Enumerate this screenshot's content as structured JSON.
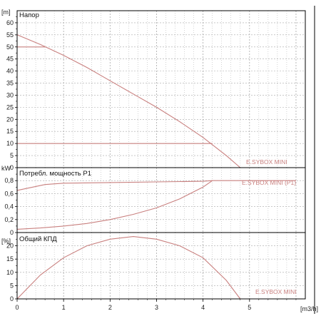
{
  "chart_data": [
    {
      "type": "line",
      "title": "Напор",
      "ylabel": "[m]",
      "xlabel": "",
      "xlim": [
        0,
        6.2
      ],
      "ylim": [
        0,
        65
      ],
      "x_ticks": [
        0,
        1,
        2,
        3,
        4,
        5
      ],
      "y_ticks": [
        0,
        5,
        10,
        15,
        20,
        25,
        30,
        35,
        40,
        45,
        50,
        55,
        60
      ],
      "grid": true,
      "series": [
        {
          "name": "E.SYBOX MINI",
          "x": [
            0,
            0.5,
            1,
            1.5,
            2,
            2.5,
            3,
            3.5,
            4,
            4.5,
            4.8
          ],
          "y": [
            55,
            51,
            46.5,
            41.5,
            36,
            30.5,
            25,
            19,
            12.5,
            5,
            0
          ]
        },
        {
          "name": "",
          "x": [
            0,
            0.6
          ],
          "y": [
            50,
            50
          ]
        },
        {
          "name": "",
          "x": [
            0,
            4.2
          ],
          "y": [
            10,
            10
          ]
        }
      ]
    },
    {
      "type": "line",
      "title": "Потребл. мощность P1",
      "ylabel": "kW",
      "xlabel": "",
      "xlim": [
        0,
        6.2
      ],
      "ylim": [
        0,
        1.0
      ],
      "x_ticks": [
        0,
        1,
        2,
        3,
        4,
        5
      ],
      "y_ticks": [
        "0",
        "0,2",
        "0,4",
        "0,6",
        "0,8"
      ],
      "grid": true,
      "series": [
        {
          "name": "E.SYBOX MINI (P1)",
          "x": [
            0,
            0.6,
            1,
            2,
            3,
            4,
            4.2,
            5,
            6
          ],
          "y": [
            0.65,
            0.74,
            0.76,
            0.77,
            0.78,
            0.79,
            0.8,
            0.8,
            0.8
          ]
        },
        {
          "name": "",
          "x": [
            0,
            0.5,
            1,
            1.5,
            2,
            2.5,
            3,
            3.5,
            4,
            4.2
          ],
          "y": [
            0.05,
            0.07,
            0.1,
            0.14,
            0.2,
            0.28,
            0.38,
            0.52,
            0.7,
            0.8
          ]
        }
      ]
    },
    {
      "type": "line",
      "title": "Общий КПД",
      "ylabel": "[%]",
      "xlabel": "[m3/h]",
      "xlim": [
        0,
        6.2
      ],
      "ylim": [
        0,
        25
      ],
      "x_ticks": [
        0,
        1,
        2,
        3,
        4,
        5
      ],
      "y_ticks": [
        0,
        5,
        10,
        15,
        20
      ],
      "grid": true,
      "series": [
        {
          "name": "E.SYBOX MINI",
          "x": [
            0,
            0.5,
            1,
            1.5,
            2,
            2.5,
            3,
            3.5,
            4,
            4.5,
            4.8
          ],
          "y": [
            0,
            9,
            15.5,
            20,
            22.5,
            23.5,
            22.5,
            20,
            15.5,
            7,
            0
          ]
        }
      ]
    }
  ],
  "labels": {
    "head_title": "Напор",
    "head_unit": "[m]",
    "head_series": "E.SYBOX MINI",
    "power_title": "Потребл. мощность P1",
    "power_unit": "kW",
    "power_series": "E.SYBOX MINI (P1)",
    "eff_title": "Общий КПД",
    "eff_unit": "[%]",
    "eff_series": "E.SYBOX MINI",
    "x_unit": "[m3/h]"
  },
  "colors": {
    "curve": "#c9807f",
    "grid": "#a8a8a8",
    "axis": "#000000",
    "text": "#222222"
  }
}
